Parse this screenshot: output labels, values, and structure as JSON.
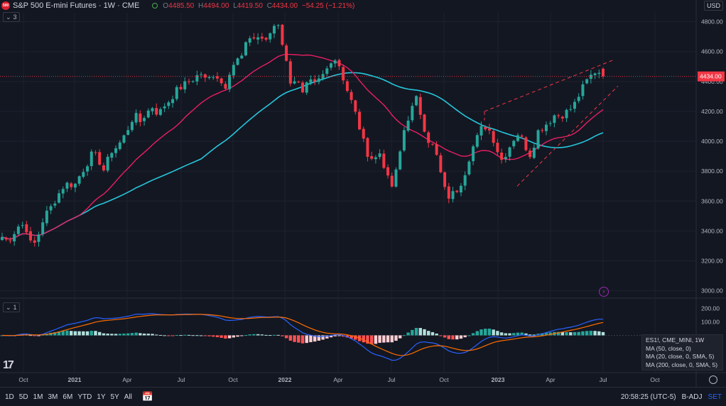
{
  "header": {
    "logo_text": "500",
    "title": "S&P 500 E-mini Futures · 1W · CME",
    "ohlc": [
      {
        "label": "O",
        "value": "4485.50"
      },
      {
        "label": "H",
        "value": "4494.00"
      },
      {
        "label": "L",
        "value": "4419.50"
      },
      {
        "label": "C",
        "value": "4434.00"
      },
      {
        "label": "",
        "value": "−54.25 (−1.21%)"
      }
    ],
    "main_collapse": "3",
    "indicator_collapse": "1"
  },
  "currency": "USD",
  "price_tag": "4434.00",
  "colors": {
    "up": "#26a69a",
    "down": "#f23645",
    "ma20": "#e91e63",
    "ma50": "#26c6da",
    "macd": "#2962ff",
    "signal": "#ff6d00",
    "bg": "#131722",
    "grid": "#1e222d"
  },
  "chart_data": [
    {
      "type": "candlestick",
      "title": "S&P 500 E-mini Futures · 1W · CME",
      "ylim": [
        2960,
        4860
      ],
      "y_ticks": [
        "3000.00",
        "3200.00",
        "3400.00",
        "3600.00",
        "3800.00",
        "4000.00",
        "4200.00",
        "4400.00",
        "4600.00",
        "4800.00"
      ],
      "x_ticks": [
        "Oct",
        "2021",
        "Apr",
        "Jul",
        "Oct",
        "2022",
        "Apr",
        "Jul",
        "Oct",
        "2023",
        "Apr",
        "Jul",
        "Oct"
      ],
      "anchor_closes": [
        3360,
        3330,
        3390,
        3450,
        3420,
        3280,
        3370,
        3500,
        3550,
        3620,
        3690,
        3720,
        3700,
        3780,
        3840,
        3920,
        3880,
        3800,
        3930,
        3960,
        4010,
        4090,
        4180,
        4130,
        4190,
        4230,
        4180,
        4240,
        4280,
        4340,
        4370,
        4400,
        4420,
        4460,
        4400,
        4450,
        4430,
        4350,
        4490,
        4540,
        4570,
        4700,
        4690,
        4700,
        4660,
        4770,
        4790,
        4580,
        4400,
        4420,
        4310,
        4400,
        4380,
        4420,
        4480,
        4570,
        4520,
        4390,
        4280,
        4160,
        4010,
        3900,
        3880,
        3930,
        3760,
        3690,
        3880,
        4100,
        4200,
        4290,
        4120,
        4000,
        3950,
        3780,
        3620,
        3650,
        3690,
        3790,
        3930,
        4020,
        4110,
        4080,
        3990,
        3870,
        3930,
        4010,
        4060,
        3970,
        3900,
        4060,
        4100,
        4130,
        4180,
        4170,
        4200,
        4230,
        4310,
        4390,
        4440,
        4480,
        4434
      ],
      "last_bar": {
        "open": 4485.5,
        "high": 4494.0,
        "low": 4419.5,
        "close": 4434.0
      },
      "series": [
        {
          "name": "MA (20, close, 0, SMA, 5)",
          "color": "#e91e63"
        },
        {
          "name": "MA (50, close, 0)",
          "color": "#26c6da"
        }
      ],
      "annotations": [
        "dashed rising channel drawn from late 2022 to Jul 2023"
      ]
    },
    {
      "type": "bar",
      "subtype": "macd-histogram",
      "ylim": [
        -270,
        270
      ],
      "y_ticks": [
        "100.00",
        "200.00"
      ],
      "series_names": [
        "MACD",
        "Signal",
        "Histogram"
      ]
    }
  ],
  "legend": {
    "line1": "ES1!, CME_MINI, 1W",
    "line2": "MA (50, close, 0)",
    "line3": "MA (20, close, 0, SMA, 5)",
    "line4": "MA (200, close, 0, SMA, 5)"
  },
  "bottom": {
    "timeframes": [
      "1D",
      "5D",
      "1M",
      "3M",
      "6M",
      "YTD",
      "1Y",
      "5Y",
      "All"
    ],
    "time": "20:58:25 (UTC-5)",
    "badj": "B-ADJ",
    "set": "SET"
  }
}
